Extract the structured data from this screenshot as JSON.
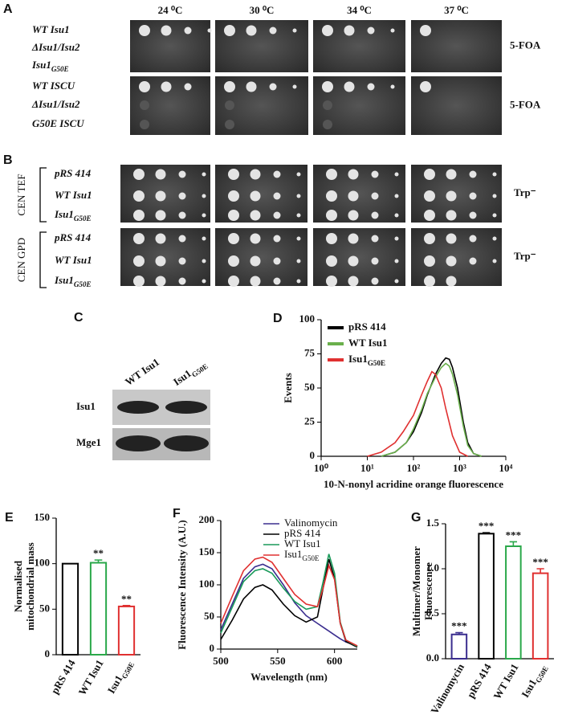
{
  "panel_a": {
    "label": "A",
    "temperatures": [
      "24 ⁰C",
      "30 ⁰C",
      "34 ⁰C",
      "37 ⁰C"
    ],
    "groups": [
      {
        "rows": [
          {
            "text": "WT Isu1"
          },
          {
            "text": "ΔIsu1/Isu2"
          },
          {
            "text": "Isu1",
            "sub": "G50E"
          }
        ],
        "medium": "5-FOA"
      },
      {
        "rows": [
          {
            "text": "WT ISCU"
          },
          {
            "text": "ΔIsu1/Isu2"
          },
          {
            "text": "G50E ISCU"
          }
        ],
        "medium": "5-FOA"
      }
    ]
  },
  "panel_b": {
    "label": "B",
    "groups": [
      {
        "promoter": "CEN TEF",
        "rows": [
          {
            "text": "pRS 414"
          },
          {
            "text": "WT Isu1"
          },
          {
            "text": "Isu1",
            "sub": "G50E"
          }
        ],
        "medium": "Trp⁻"
      },
      {
        "promoter": "CEN GPD",
        "rows": [
          {
            "text": "pRS 414"
          },
          {
            "text": "WT Isu1"
          },
          {
            "text": "Isu1",
            "sub": "G50E"
          }
        ],
        "medium": "Trp⁻"
      }
    ]
  },
  "panel_c": {
    "label": "C",
    "columns": [
      {
        "text": "WT Isu1"
      },
      {
        "text": "Isu1",
        "sub": "G50E"
      }
    ],
    "rows": [
      "Isu1",
      "Mge1"
    ]
  },
  "chart_data": [
    {
      "panel": "D",
      "type": "line",
      "xscale": "log",
      "ylabel": "Events",
      "xlabel": "10-N-nonyl acridine orange fluorescence",
      "xlim": [
        1,
        10000
      ],
      "xticks": [
        {
          "value": 1,
          "label": "10⁰"
        },
        {
          "value": 10,
          "label": "10¹"
        },
        {
          "value": 100,
          "label": "10²"
        },
        {
          "value": 1000,
          "label": "10³"
        },
        {
          "value": 10000,
          "label": "10⁴"
        }
      ],
      "ylim": [
        0,
        100
      ],
      "yticks": [
        0,
        25,
        50,
        75,
        100
      ],
      "series": [
        {
          "name": "pRS 414",
          "color": "#000000",
          "x": [
            20,
            40,
            70,
            100,
            150,
            200,
            300,
            400,
            500,
            600,
            700,
            900,
            1200,
            1500,
            2000,
            3000
          ],
          "values": [
            0,
            3,
            10,
            18,
            32,
            45,
            60,
            68,
            72,
            71,
            65,
            50,
            25,
            10,
            2,
            0
          ]
        },
        {
          "name": "WT  Isu1",
          "color": "#6ab04c",
          "x": [
            20,
            40,
            70,
            100,
            150,
            200,
            300,
            400,
            500,
            600,
            700,
            900,
            1200,
            1500,
            2000,
            3000
          ],
          "values": [
            0,
            3,
            10,
            20,
            34,
            46,
            58,
            65,
            68,
            66,
            60,
            45,
            22,
            8,
            2,
            0
          ]
        },
        {
          "name": "Isu1",
          "name_sub": "G50E",
          "color": "#e03030",
          "x": [
            10,
            20,
            40,
            60,
            100,
            150,
            200,
            250,
            300,
            400,
            500,
            700,
            1000,
            1500
          ],
          "values": [
            0,
            3,
            10,
            18,
            30,
            45,
            55,
            62,
            60,
            50,
            35,
            15,
            3,
            0
          ]
        }
      ]
    },
    {
      "panel": "E",
      "type": "bar",
      "ylabel": [
        "Normalised",
        "mitochondrial mass"
      ],
      "categories": [
        "pRS 414",
        "WT Isu1",
        "Isu1"
      ],
      "category_subs": [
        null,
        null,
        "G50E"
      ],
      "values": [
        100,
        101,
        53
      ],
      "errors": [
        null,
        3,
        1
      ],
      "significance": [
        null,
        "**",
        "**"
      ],
      "colors": [
        "#000000",
        "#2aa84a",
        "#e03030"
      ],
      "ylim": [
        0,
        150
      ],
      "yticks": [
        0,
        50,
        100,
        150
      ]
    },
    {
      "panel": "F",
      "type": "line",
      "ylabel": "Fluorescence Intensity (A.U.)",
      "xlabel": "Wavelength (nm)",
      "xlim": [
        500,
        620
      ],
      "xticks": [
        500,
        550,
        600
      ],
      "ylim": [
        0,
        200
      ],
      "yticks": [
        0,
        50,
        100,
        150,
        200
      ],
      "series": [
        {
          "name": "Valinomycin",
          "color": "#3b2e8f",
          "x": [
            500,
            510,
            520,
            530,
            537,
            545,
            555,
            565,
            575,
            585,
            590,
            595,
            600,
            605,
            610,
            620
          ],
          "values": [
            30,
            70,
            110,
            128,
            132,
            125,
            100,
            72,
            52,
            40,
            34,
            28,
            22,
            16,
            11,
            5
          ]
        },
        {
          "name": "pRS 414",
          "color": "#000000",
          "x": [
            500,
            510,
            520,
            530,
            537,
            545,
            555,
            565,
            575,
            585,
            590,
            595,
            600,
            605,
            610,
            620
          ],
          "values": [
            15,
            45,
            78,
            96,
            100,
            92,
            70,
            52,
            42,
            50,
            95,
            140,
            110,
            40,
            12,
            3
          ]
        },
        {
          "name": "WT Isu1",
          "color": "#1a9a5a",
          "x": [
            500,
            510,
            520,
            530,
            537,
            545,
            555,
            565,
            575,
            585,
            590,
            595,
            600,
            605,
            610,
            620
          ],
          "values": [
            25,
            65,
            105,
            122,
            125,
            118,
            95,
            74,
            62,
            66,
            105,
            148,
            118,
            42,
            14,
            4
          ]
        },
        {
          "name": "Isu1",
          "name_sub": "G50E",
          "color": "#e03030",
          "x": [
            500,
            510,
            520,
            530,
            537,
            545,
            555,
            565,
            575,
            585,
            590,
            595,
            600,
            605,
            610,
            620
          ],
          "values": [
            40,
            82,
            122,
            140,
            143,
            135,
            110,
            85,
            70,
            66,
            95,
            130,
            108,
            40,
            14,
            5
          ]
        }
      ]
    },
    {
      "panel": "G",
      "type": "bar",
      "ylabel": [
        "Multimer/Monomer",
        "Fluorescence"
      ],
      "categories": [
        "Valinomycin",
        "pRS 414",
        "WT Isu1",
        "Isu1"
      ],
      "category_subs": [
        null,
        null,
        null,
        "G50E"
      ],
      "values": [
        0.27,
        1.39,
        1.25,
        0.95
      ],
      "errors": [
        0.02,
        0.01,
        0.05,
        0.05
      ],
      "significance": [
        "***",
        "***",
        "***",
        "***"
      ],
      "colors": [
        "#3b2e8f",
        "#000000",
        "#2aa84a",
        "#e03030"
      ],
      "ylim": [
        0,
        1.5
      ],
      "yticks": [
        {
          "value": 0,
          "label": "0.0"
        },
        0.5,
        {
          "value": 1,
          "label": "1.0"
        },
        1.5
      ]
    }
  ]
}
